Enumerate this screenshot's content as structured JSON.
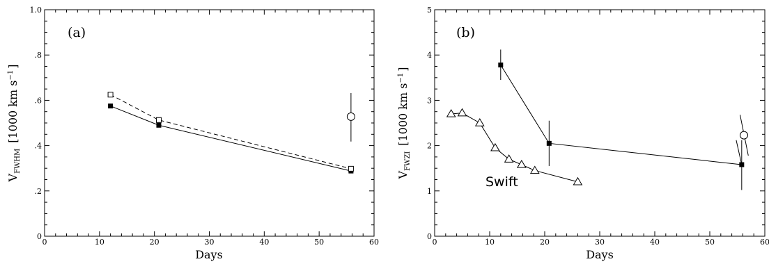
{
  "chart_data": [
    {
      "type": "line",
      "panel_label": "(a)",
      "xlabel": "Days",
      "ylabel_main": "V",
      "ylabel_sub": "FWHM",
      "ylabel_unit": "[1000 km s",
      "ylabel_unit_exp": "−1",
      "ylabel_unit_close": "]",
      "xlim": [
        0,
        60
      ],
      "ylim": [
        0,
        1.0
      ],
      "xticks": [
        0,
        10,
        20,
        30,
        40,
        50,
        60
      ],
      "xtick_labels": [
        "0",
        "10",
        "20",
        "30",
        "40",
        "50",
        "60"
      ],
      "yticks": [
        0,
        0.2,
        0.4,
        0.6,
        0.8,
        1.0
      ],
      "ytick_labels": [
        "0",
        ".2",
        ".4",
        ".6",
        ".8",
        "1.0"
      ],
      "series": [
        {
          "marker": "filled-square",
          "line": "solid",
          "x": [
            12,
            20.8,
            55.8
          ],
          "y": [
            0.575,
            0.49,
            0.288
          ]
        },
        {
          "marker": "open-square",
          "line": "dashed",
          "x": [
            12,
            20.8,
            55.8
          ],
          "y": [
            0.625,
            0.513,
            0.298
          ]
        },
        {
          "marker": "open-circle",
          "line": "none",
          "x": [
            55.8
          ],
          "y": [
            0.528
          ],
          "yerr_low": [
            0.418
          ],
          "yerr_high": [
            0.632
          ]
        }
      ]
    },
    {
      "type": "line",
      "panel_label": "(b)",
      "xlabel": "Days",
      "ylabel_main": "V",
      "ylabel_sub": "FWZI",
      "ylabel_unit": "[1000 km s",
      "ylabel_unit_exp": "−1",
      "ylabel_unit_close": "]",
      "annotation": "Swift",
      "xlim": [
        0,
        60
      ],
      "ylim": [
        0,
        5
      ],
      "xticks": [
        0,
        10,
        20,
        30,
        40,
        50,
        60
      ],
      "xtick_labels": [
        "0",
        "10",
        "20",
        "30",
        "40",
        "50",
        "60"
      ],
      "yticks": [
        0,
        1,
        2,
        3,
        4,
        5
      ],
      "ytick_labels": [
        "0",
        "1",
        "2",
        "3",
        "4",
        "5"
      ],
      "series": [
        {
          "marker": "filled-square",
          "line": "solid",
          "x": [
            12,
            20.8,
            55.8
          ],
          "y": [
            3.78,
            2.05,
            1.58
          ],
          "yerr_low": [
            3.45,
            1.55,
            1.02
          ],
          "yerr_high": [
            4.12,
            2.55,
            2.12
          ]
        },
        {
          "marker": "open-triangle",
          "line": "solid",
          "x": [
            3,
            5,
            8.2,
            11,
            13.5,
            15.8,
            18.2,
            26
          ],
          "y": [
            2.7,
            2.72,
            2.5,
            1.95,
            1.7,
            1.58,
            1.45,
            1.2
          ]
        },
        {
          "marker": "open-circle",
          "line": "none",
          "x": [
            56.2
          ],
          "y": [
            2.23
          ],
          "err_line": [
            [
              55.5,
              2.68
            ],
            [
              57.0,
              1.78
            ]
          ]
        },
        {
          "marker": "none",
          "line": "solid",
          "x": [
            54.8,
            55.8
          ],
          "y": [
            2.12,
            1.58
          ]
        }
      ]
    }
  ]
}
